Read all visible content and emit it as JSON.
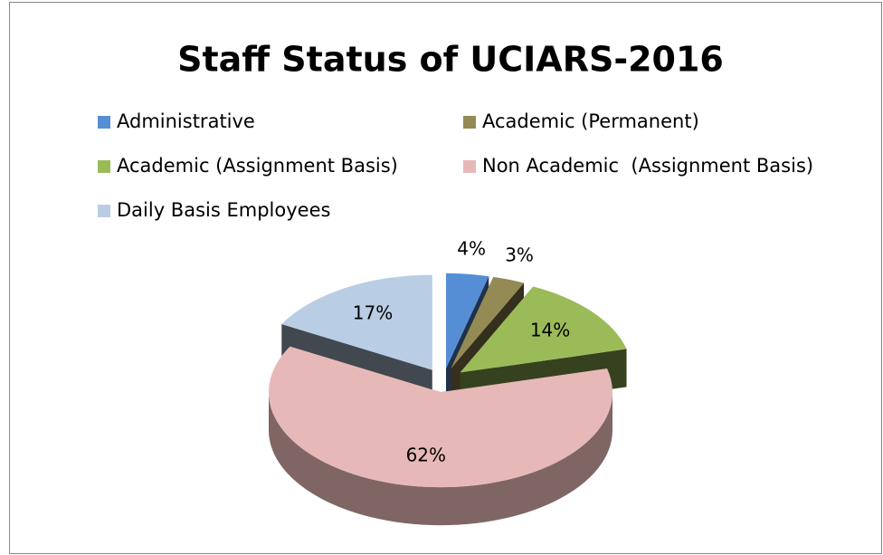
{
  "chart_data": {
    "type": "pie",
    "title": "Staff Status of UCIARS-2016",
    "categories": [
      "Administrative",
      "Academic (Permanent)",
      "Academic (Assignment Basis)",
      "Non Academic  (Assignment Basis)",
      "Daily Basis Employees"
    ],
    "values": [
      4,
      3,
      14,
      62,
      17
    ],
    "value_labels": [
      "4%",
      "3%",
      "14%",
      "62%",
      "17%"
    ],
    "colors": [
      "#558ed5",
      "#948a54",
      "#9bbb59",
      "#e6b9b8",
      "#b9cde5"
    ],
    "legend": "top"
  }
}
